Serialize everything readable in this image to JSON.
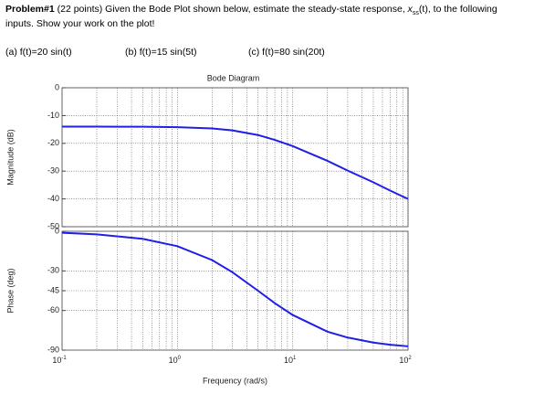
{
  "problem": {
    "label": "Problem#1",
    "statement": " (22 points) Given the Bode Plot shown below, estimate the steady-state response, ",
    "variable": "x",
    "subscript": "ss",
    "statement_end": "(t), to the following",
    "statement_line2": "inputs. Show your work on the plot!",
    "inputs": [
      "(a) f(t)=20 sin(t)",
      "(b) f(t)=15 sin(5t)",
      "(c) f(t)=80 sin(20t)"
    ]
  },
  "chart_data": [
    {
      "type": "line",
      "title": "Bode Diagram",
      "y_label": "Magnitude (dB)",
      "xscale": "log",
      "grid": true,
      "color": "#1f1fe6",
      "x": [
        0.1,
        0.2,
        0.5,
        1,
        2,
        3,
        5,
        7,
        10,
        20,
        30,
        50,
        70,
        100
      ],
      "values": [
        -14.0,
        -14.0,
        -14.04,
        -14.17,
        -14.64,
        -15.34,
        -17.01,
        -18.76,
        -20.99,
        -26.3,
        -29.8,
        -34.0,
        -37.0,
        -40.0
      ],
      "xlim": [
        0.1,
        100
      ],
      "xticks": [
        0.1,
        1,
        10,
        100
      ],
      "ylim": [
        -50,
        0
      ],
      "yticks": [
        0,
        -10,
        -20,
        -30,
        -40,
        -50
      ]
    },
    {
      "type": "line",
      "y_label": "Phase (deg)",
      "x_label": "Frequency (rad/s)",
      "xscale": "log",
      "grid": true,
      "color": "#1f1fe6",
      "x": [
        0.1,
        0.2,
        0.5,
        1,
        2,
        3,
        5,
        7,
        10,
        20,
        30,
        50,
        70,
        100
      ],
      "values": [
        -1.1,
        -2.3,
        -5.7,
        -11.3,
        -21.8,
        -31.0,
        -45.0,
        -54.5,
        -63.4,
        -76.0,
        -80.5,
        -84.3,
        -85.9,
        -87.1
      ],
      "xlim": [
        0.1,
        100
      ],
      "xticks": [
        {
          "value": 0.1,
          "label": "10",
          "exponent": "-1"
        },
        {
          "value": 1,
          "label": "10",
          "exponent": "0"
        },
        {
          "value": 10,
          "label": "10",
          "exponent": "1"
        },
        {
          "value": 100,
          "label": "10",
          "exponent": "2"
        }
      ],
      "ylim": [
        -90,
        0
      ],
      "yticks": [
        0,
        -30,
        -45,
        -60,
        -90
      ]
    }
  ]
}
